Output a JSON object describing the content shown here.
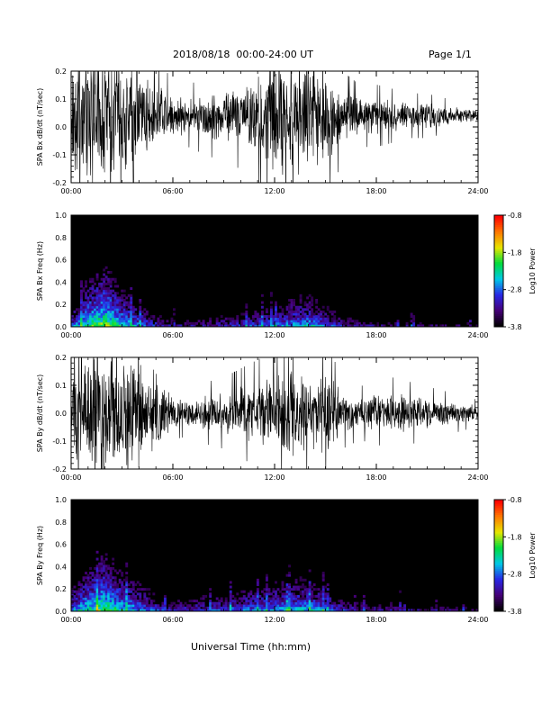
{
  "header": {
    "title": "2018/08/18  00:00-24:00 UT",
    "page": "Page 1/1"
  },
  "footer": {
    "xlabel": "Universal Time (hh:mm)"
  },
  "colors": {
    "trace": "#000000",
    "spectrogram_background": "#000000"
  },
  "colorbar": {
    "label": "Log10 Power",
    "ticks": [
      "-0.8",
      "-1.8",
      "-2.8",
      "-3.8"
    ],
    "range": [
      -3.8,
      -0.8
    ],
    "colormap": "rainbow"
  },
  "chart_data": [
    {
      "type": "line",
      "ylabel": "SPA Bx dB/dt (nT/sec)",
      "ylim": [
        -0.2,
        0.2
      ],
      "yticks": [
        "0.2",
        "0.1",
        "0.0",
        "-0.1",
        "-0.2"
      ],
      "xticks": [
        "00:00",
        "06:00",
        "12:00",
        "18:00",
        "24:00"
      ],
      "xlim_hours": [
        0,
        24
      ],
      "baseline": 0.04,
      "activity_hours": [
        0,
        1,
        2,
        3,
        4,
        5,
        6,
        7,
        8,
        9,
        10,
        11,
        12,
        13,
        14,
        15,
        16,
        17,
        18,
        19,
        20,
        21,
        22,
        23,
        24
      ],
      "activity_amplitude": [
        0.22,
        0.25,
        0.26,
        0.22,
        0.18,
        0.13,
        0.08,
        0.07,
        0.09,
        0.1,
        0.12,
        0.17,
        0.23,
        0.22,
        0.2,
        0.2,
        0.1,
        0.07,
        0.07,
        0.06,
        0.05,
        0.05,
        0.04,
        0.03,
        0.03
      ]
    },
    {
      "type": "heatmap",
      "ylabel": "SPA Bx Freq (Hz)",
      "ylim": [
        0,
        1.0
      ],
      "yticks": [
        "1.0",
        "0.8",
        "0.6",
        "0.4",
        "0.2",
        "0.0"
      ],
      "xticks": [
        "00:00",
        "06:00",
        "12:00",
        "18:00",
        "24:00"
      ],
      "xlim_hours": [
        0,
        24
      ],
      "zlim": [
        -3.8,
        -0.8
      ],
      "low_freq_power_hours": [
        0,
        1,
        2,
        3,
        4,
        5,
        6,
        7,
        8,
        9,
        10,
        11,
        12,
        13,
        14,
        15,
        16,
        17,
        18,
        19,
        20,
        21,
        22,
        23,
        24
      ],
      "low_freq_power": [
        -2.6,
        -1.8,
        -1.5,
        -2.0,
        -2.4,
        -2.8,
        -3.1,
        -3.1,
        -3.0,
        -2.9,
        -2.8,
        -2.6,
        -2.5,
        -2.3,
        -2.2,
        -2.5,
        -2.9,
        -3.1,
        -3.1,
        -3.2,
        -3.2,
        -3.3,
        -3.3,
        -3.3,
        -3.3
      ]
    },
    {
      "type": "line",
      "ylabel": "SPA By dB/dt (nT/sec)",
      "ylim": [
        -0.2,
        0.2
      ],
      "yticks": [
        "0.2",
        "0.1",
        "0.0",
        "-0.1",
        "-0.2"
      ],
      "xticks": [
        "00:00",
        "06:00",
        "12:00",
        "18:00",
        "24:00"
      ],
      "xlim_hours": [
        0,
        24
      ],
      "baseline": 0.0,
      "activity_hours": [
        0,
        1,
        2,
        3,
        4,
        5,
        6,
        7,
        8,
        9,
        10,
        11,
        12,
        13,
        14,
        15,
        16,
        17,
        18,
        19,
        20,
        21,
        22,
        23,
        24
      ],
      "activity_amplitude": [
        0.16,
        0.22,
        0.26,
        0.22,
        0.2,
        0.17,
        0.06,
        0.05,
        0.07,
        0.08,
        0.1,
        0.12,
        0.14,
        0.18,
        0.14,
        0.16,
        0.08,
        0.06,
        0.07,
        0.08,
        0.07,
        0.06,
        0.05,
        0.04,
        0.03
      ]
    },
    {
      "type": "heatmap",
      "ylabel": "SPA By Freq (Hz)",
      "ylim": [
        0,
        1.0
      ],
      "yticks": [
        "1.0",
        "0.8",
        "0.6",
        "0.4",
        "0.2",
        "0.0"
      ],
      "xticks": [
        "00:00",
        "06:00",
        "12:00",
        "18:00",
        "24:00"
      ],
      "xlim_hours": [
        0,
        24
      ],
      "zlim": [
        -3.8,
        -0.8
      ],
      "low_freq_power_hours": [
        0,
        1,
        2,
        3,
        4,
        5,
        6,
        7,
        8,
        9,
        10,
        11,
        12,
        13,
        14,
        15,
        16,
        17,
        18,
        19,
        20,
        21,
        22,
        23,
        24
      ],
      "low_freq_power": [
        -2.4,
        -1.9,
        -1.6,
        -2.0,
        -2.3,
        -2.7,
        -2.9,
        -2.8,
        -2.7,
        -2.6,
        -2.5,
        -2.4,
        -2.3,
        -2.2,
        -2.2,
        -2.4,
        -2.8,
        -3.0,
        -3.0,
        -3.0,
        -3.1,
        -3.1,
        -3.2,
        -3.2,
        -3.2
      ]
    }
  ]
}
